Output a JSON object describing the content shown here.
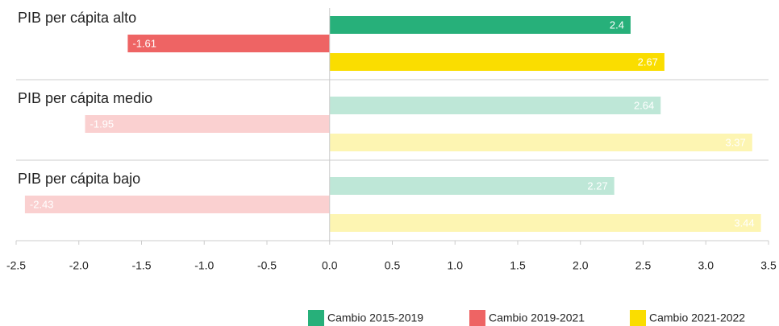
{
  "chart_data": {
    "type": "bar",
    "orientation": "horizontal",
    "categories": [
      "PIB per cápita alto",
      "PIB per cápita medio",
      "PIB per cápita bajo"
    ],
    "series": [
      {
        "name": "Cambio 2015-2019",
        "color": "#27b07a",
        "values": [
          2.4,
          2.64,
          2.27
        ]
      },
      {
        "name": "Cambio 2019-2021",
        "color": "#ee6464",
        "values": [
          -1.61,
          -1.95,
          -2.43
        ]
      },
      {
        "name": "Cambio 2021-2022",
        "color": "#fadd00",
        "values": [
          2.67,
          3.37,
          3.44
        ]
      }
    ],
    "xlim": [
      -2.5,
      3.5
    ],
    "xticks": [
      -2.5,
      {
        "value": -2,
        "label": "-2.0"
      },
      -1.5,
      {
        "value": -1,
        "label": "-1.0"
      },
      -0.5,
      {
        "value": 0,
        "label": "0.0"
      },
      0.5,
      {
        "value": 1,
        "label": "1.0"
      },
      1.5,
      {
        "value": 2,
        "label": "2.0"
      },
      2.5,
      {
        "value": 3,
        "label": "3.0"
      },
      3.5
    ],
    "legend": "bottom-right"
  }
}
